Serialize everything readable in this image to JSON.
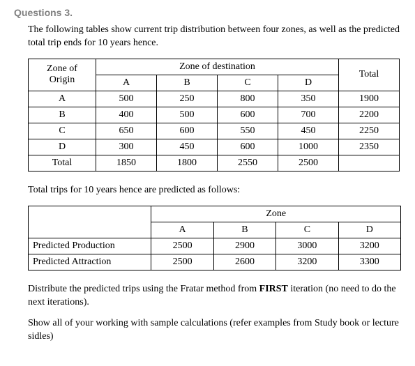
{
  "heading": "Questions 3.",
  "intro": "The following tables show current trip distribution between four zones, as well as the predicted total trip ends for 10 years hence.",
  "table1": {
    "origin_header": "Zone of Origin",
    "dest_header": "Zone of destination",
    "total_header": "Total",
    "cols": [
      "A",
      "B",
      "C",
      "D"
    ],
    "rows": [
      {
        "z": "A",
        "v": [
          "500",
          "250",
          "800",
          "350"
        ],
        "t": "1900"
      },
      {
        "z": "B",
        "v": [
          "400",
          "500",
          "600",
          "700"
        ],
        "t": "2200"
      },
      {
        "z": "C",
        "v": [
          "650",
          "600",
          "550",
          "450"
        ],
        "t": "2250"
      },
      {
        "z": "D",
        "v": [
          "300",
          "450",
          "600",
          "1000"
        ],
        "t": "2350"
      }
    ],
    "total_row_label": "Total",
    "col_totals": [
      "1850",
      "1800",
      "2550",
      "2500"
    ]
  },
  "mid": "Total trips for 10 years hence are predicted as follows:",
  "table2": {
    "zone_header": "Zone",
    "cols": [
      "A",
      "B",
      "C",
      "D"
    ],
    "rows": [
      {
        "l": "Predicted Production",
        "v": [
          "2500",
          "2900",
          "3000",
          "3200"
        ]
      },
      {
        "l": "Predicted Attraction",
        "v": [
          "2500",
          "2600",
          "3200",
          "3300"
        ]
      }
    ]
  },
  "p1a": "Distribute the predicted trips using the Fratar method from ",
  "p1b": "FIRST",
  "p1c": " iteration (no need to do the next iterations).",
  "p2": "Show all of your working with sample calculations (refer examples from Study book or lecture sidles)"
}
